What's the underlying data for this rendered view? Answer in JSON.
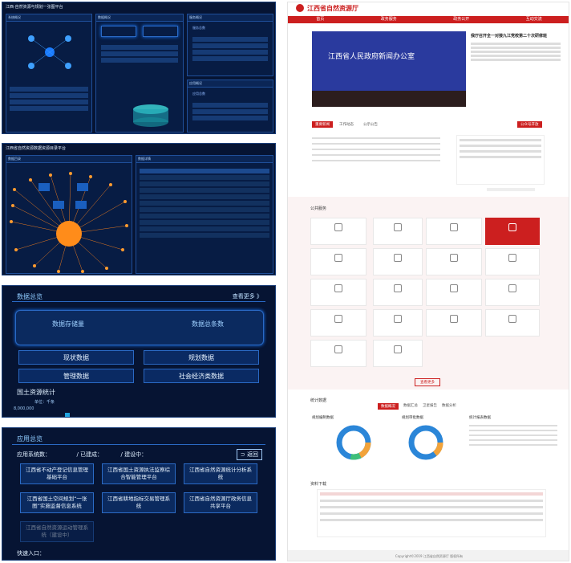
{
  "panel1": {
    "title": "江西·自然资源与规划一张图平台",
    "sections": [
      "系统概况",
      "数据概况",
      "服务概况",
      "应用概况"
    ],
    "right_labels": [
      "服务总数",
      "应用总数"
    ]
  },
  "panel2": {
    "title": "江西省自然资源数据资源目录平台",
    "left_title": "数据目录",
    "right_title": "数据详情"
  },
  "panel3": {
    "title": "数据总览",
    "more": "查看更多 》",
    "stat_left": "数据存储量",
    "stat_right": "数据总条数",
    "rows": [
      [
        "现状数据",
        "规划数据"
      ],
      [
        "管理数据",
        "社会经济类数据"
      ]
    ],
    "section": "国土资源统计",
    "unit": "单位：千条",
    "axis_top": "8,000,000"
  },
  "panel4": {
    "title": "应用总览",
    "counts_label": "应用系统数：",
    "built_label": "已建成：",
    "building_label": "建设中：",
    "back": "返回",
    "apps": [
      "江西省不动产登记信息管理基础平台",
      "江西省国土资源执法监察综合智能管理平台",
      "江西省自然资源统计分析系统",
      "江西省国土空间规划“一张图”实施监督信息系统",
      "江西省耕地指标交易管理系统",
      "江西省自然资源厅政务信息共享平台",
      "江西省自然资源运动管理系统（建设中）"
    ],
    "quick": "快速入口："
  },
  "portal": {
    "site": "江西省自然资源厅",
    "nav": [
      "首页",
      "政务服务",
      "政务公开",
      "互动交流"
    ],
    "news_headline": "我厅召开全一对接九江党校第二十次研修班",
    "banner_text": "江西省人民政府新闻办公室",
    "tabs": [
      "重要新闻",
      "工作动态",
      "公示公告"
    ],
    "side_btn": "公众号开放",
    "more": "更多",
    "services_title": "公共服务",
    "services_more": "查看更多",
    "stats_title": "统计数据",
    "stats_tabs": [
      "数据概况",
      "数据汇总",
      "卫星报告",
      "数据分析"
    ],
    "stats_labels": [
      "规划编制数据",
      "规划审批数据",
      "统计报表数据"
    ],
    "download_title": "资料下载",
    "footer": "Copyright©2019 江西省自然资源厅 版权所有"
  },
  "colors": {
    "brand_red": "#cc1f1f",
    "dark_bg": "#061433",
    "accent_blue": "#1a7bff"
  }
}
